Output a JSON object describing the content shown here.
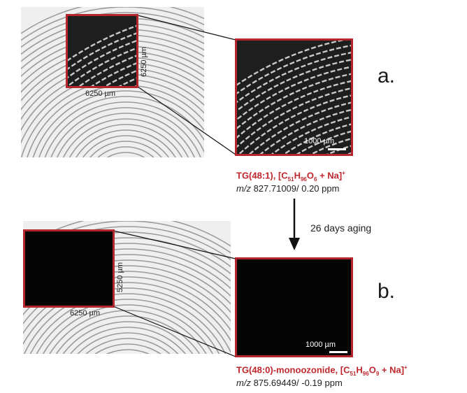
{
  "panel_a": {
    "letter": "a.",
    "dim_horizontal": "6250 µm",
    "dim_vertical": "6250 µm",
    "scale_bar": "1000 µm",
    "compound": {
      "name": "TG(48:1), [C",
      "sub1": "51",
      "mid1": "H",
      "sub2": "96",
      "mid2": "O",
      "sub3": "6",
      "end": " + Na]",
      "sup": "+"
    },
    "mz_label": "m/z",
    "mz_value": " 827.71009/ 0.20 ppm"
  },
  "panel_b": {
    "letter": "b.",
    "dim_horizontal": "6250 µm",
    "dim_vertical": "5250 µm",
    "scale_bar": "1000 µm",
    "compound": {
      "name": "TG(48:0)-monoozonide, [C",
      "sub1": "51",
      "mid1": "H",
      "sub2": "96",
      "mid2": "O",
      "sub3": "9",
      "end": " + Na]",
      "sup": "+"
    },
    "mz_label": "m/z",
    "mz_value": " 875.69449/ -0.19 ppm"
  },
  "aging": {
    "label": "26 days aging"
  },
  "colors": {
    "highlight_red": "#b3262e",
    "compound_red": "#c0272d"
  }
}
